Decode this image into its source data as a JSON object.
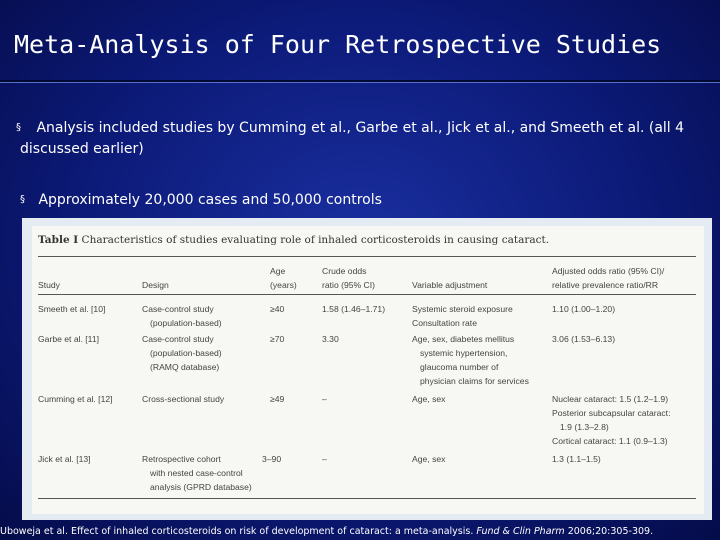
{
  "slide": {
    "title": "Meta-Analysis of Four Retrospective Studies",
    "bullets": [
      "Analysis included studies by Cumming et al., Garbe et al., Jick et al., and Smeeth et al. (all 4 discussed earlier)",
      "Approximately 20,000 cases and 50,000 controls"
    ],
    "bullet_glyph": "§"
  },
  "table": {
    "caption_label": "Table I",
    "caption_text": "Characteristics of studies evaluating role of inhaled corticosteroids in causing cataract.",
    "headers": {
      "study": "Study",
      "design": "Design",
      "age": [
        "Age",
        "(years)"
      ],
      "crude": [
        "Crude odds",
        "ratio (95% CI)"
      ],
      "variable": "Variable adjustment",
      "adjusted": [
        "Adjusted odds ratio (95% CI)/",
        "relative prevalence ratio/RR"
      ]
    },
    "rows": [
      {
        "study": "Smeeth et al. [10]",
        "design": [
          "Case-control study",
          "(population-based)"
        ],
        "age": "≥40",
        "crude": "1.58 (1.46–1.71)",
        "variable": [
          "Systemic steroid exposure",
          "Consultation rate"
        ],
        "adjusted": [
          "1.10 (1.00–1.20)"
        ]
      },
      {
        "study": "Garbe et al. [11]",
        "design": [
          "Case-control study",
          "(population-based)",
          "(RAMQ database)"
        ],
        "age": "≥70",
        "crude": "3.30",
        "variable": [
          "Age, sex, diabetes mellitus",
          "systemic hypertension,",
          "glaucoma number of",
          "physician claims for services"
        ],
        "adjusted": [
          "3.06 (1.53–6.13)"
        ]
      },
      {
        "study": "Cumming et al. [12]",
        "design": [
          "Cross-sectional study"
        ],
        "age": "≥49",
        "crude": "–",
        "variable": [
          "Age, sex"
        ],
        "adjusted": [
          "Nuclear cataract: 1.5 (1.2–1.9)",
          "Posterior subcapsular cataract:",
          "1.9 (1.3–2.8)",
          "Cortical cataract: 1.1 (0.9–1.3)"
        ]
      },
      {
        "study": "Jick et al. [13]",
        "design": [
          "Retrospective cohort",
          "with nested case-control",
          "analysis (GPRD database)"
        ],
        "age": "3–90",
        "crude": "–",
        "variable": [
          "Age, sex"
        ],
        "adjusted": [
          "1.3 (1.1–1.5)"
        ]
      }
    ]
  },
  "citation": {
    "text": "Uboweja et al. Effect of inhaled corticosteroids on risk of development of cataract: a meta-analysis.",
    "journal": "Fund & Clin Pharm",
    "ref": "2006;20:305-309."
  }
}
